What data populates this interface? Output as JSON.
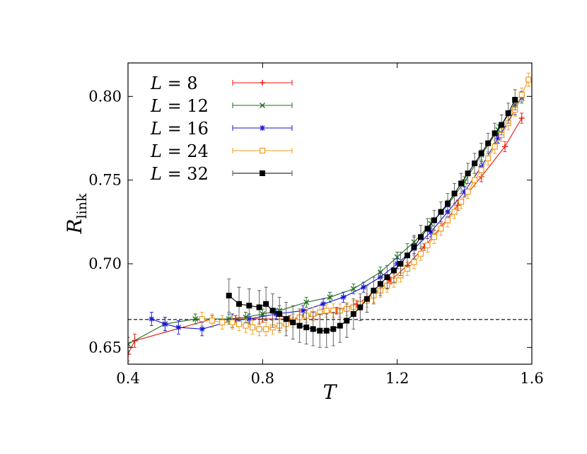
{
  "chart_data": {
    "type": "line",
    "xlabel": "T",
    "ylabel_main": "R",
    "ylabel_sub": "link",
    "xlim": [
      0.4,
      1.6
    ],
    "ylim": [
      0.64,
      0.82
    ],
    "xticks": [
      "0.4",
      "0.8",
      "1.2",
      "1.6"
    ],
    "yticks": [
      "0.65",
      "0.70",
      "0.75",
      "0.80"
    ],
    "reference_line": {
      "y": 0.6667,
      "style": "dashed",
      "color": "#000000"
    },
    "grid": false,
    "legend_position": "top-left",
    "series": [
      {
        "legend": "L = 8",
        "legend_var": "L",
        "legend_value": "8",
        "color": "#e8140c",
        "marker": "plus",
        "x": [
          0.4,
          0.42,
          0.65,
          0.72,
          0.8,
          0.88,
          0.95,
          1.02,
          1.08,
          1.13,
          1.18,
          1.23,
          1.28,
          1.33,
          1.38,
          1.45,
          1.52,
          1.57
        ],
        "y": [
          0.646,
          0.654,
          0.667,
          0.667,
          0.667,
          0.667,
          0.669,
          0.672,
          0.676,
          0.682,
          0.69,
          0.699,
          0.71,
          0.722,
          0.735,
          0.752,
          0.77,
          0.787
        ],
        "err": [
          0.004,
          0.004,
          0.002,
          0.002,
          0.002,
          0.002,
          0.002,
          0.002,
          0.002,
          0.002,
          0.002,
          0.002,
          0.002,
          0.002,
          0.003,
          0.003,
          0.003,
          0.003
        ]
      },
      {
        "legend": "L = 12",
        "legend_var": "L",
        "legend_value": "12",
        "color": "#1f6e1f",
        "marker": "x",
        "x": [
          0.4,
          0.51,
          0.6,
          0.7,
          0.75,
          0.8,
          0.85,
          0.93,
          1.0,
          1.07,
          1.15,
          1.2,
          1.25,
          1.3,
          1.35,
          1.4,
          1.45,
          1.5,
          1.55,
          1.57
        ],
        "y": [
          0.652,
          0.664,
          0.667,
          0.667,
          0.668,
          0.67,
          0.672,
          0.677,
          0.68,
          0.685,
          0.695,
          0.704,
          0.713,
          0.724,
          0.735,
          0.749,
          0.765,
          0.78,
          0.795,
          0.799
        ],
        "err": [
          0.004,
          0.004,
          0.003,
          0.003,
          0.003,
          0.003,
          0.003,
          0.003,
          0.003,
          0.003,
          0.003,
          0.003,
          0.003,
          0.003,
          0.003,
          0.003,
          0.003,
          0.003,
          0.003,
          0.003
        ]
      },
      {
        "legend": "L = 16",
        "legend_var": "L",
        "legend_value": "16",
        "color": "#1515d8",
        "marker": "star",
        "x": [
          0.47,
          0.51,
          0.55,
          0.62,
          0.71,
          0.76,
          0.84,
          0.92,
          0.98,
          1.04,
          1.1,
          1.15,
          1.2,
          1.25,
          1.3,
          1.35,
          1.4,
          1.45,
          1.5,
          1.55,
          1.57
        ],
        "y": [
          0.667,
          0.664,
          0.662,
          0.661,
          0.666,
          0.667,
          0.67,
          0.672,
          0.676,
          0.68,
          0.686,
          0.692,
          0.7,
          0.709,
          0.719,
          0.731,
          0.743,
          0.758,
          0.775,
          0.792,
          0.8
        ],
        "err": [
          0.004,
          0.004,
          0.004,
          0.004,
          0.004,
          0.003,
          0.003,
          0.003,
          0.003,
          0.003,
          0.003,
          0.003,
          0.003,
          0.003,
          0.003,
          0.003,
          0.003,
          0.003,
          0.003,
          0.003,
          0.003
        ]
      },
      {
        "legend": "L = 24",
        "legend_var": "L",
        "legend_value": "24",
        "color": "#f39b1b",
        "marker": "square-open",
        "x": [
          0.62,
          0.65,
          0.68,
          0.71,
          0.73,
          0.75,
          0.77,
          0.79,
          0.81,
          0.83,
          0.85,
          0.87,
          0.89,
          0.91,
          0.93,
          0.95,
          0.97,
          0.99,
          1.01,
          1.03,
          1.05,
          1.07,
          1.09,
          1.11,
          1.13,
          1.15,
          1.17,
          1.19,
          1.21,
          1.23,
          1.25,
          1.27,
          1.29,
          1.31,
          1.33,
          1.35,
          1.37,
          1.39,
          1.41,
          1.43,
          1.45,
          1.47,
          1.49,
          1.51,
          1.53,
          1.55,
          1.57,
          1.59
        ],
        "y": [
          0.667,
          0.666,
          0.665,
          0.665,
          0.664,
          0.663,
          0.662,
          0.661,
          0.661,
          0.662,
          0.663,
          0.664,
          0.666,
          0.668,
          0.669,
          0.67,
          0.671,
          0.672,
          0.672,
          0.672,
          0.673,
          0.674,
          0.676,
          0.678,
          0.681,
          0.684,
          0.687,
          0.69,
          0.693,
          0.697,
          0.701,
          0.706,
          0.711,
          0.716,
          0.721,
          0.726,
          0.731,
          0.737,
          0.743,
          0.75,
          0.756,
          0.763,
          0.77,
          0.777,
          0.784,
          0.792,
          0.801,
          0.81
        ],
        "err": [
          0.004,
          0.004,
          0.004,
          0.004,
          0.004,
          0.004,
          0.004,
          0.004,
          0.004,
          0.004,
          0.004,
          0.004,
          0.004,
          0.004,
          0.004,
          0.004,
          0.004,
          0.004,
          0.004,
          0.004,
          0.004,
          0.004,
          0.004,
          0.004,
          0.004,
          0.004,
          0.004,
          0.004,
          0.004,
          0.004,
          0.004,
          0.004,
          0.004,
          0.004,
          0.004,
          0.004,
          0.004,
          0.004,
          0.004,
          0.004,
          0.004,
          0.004,
          0.004,
          0.004,
          0.004,
          0.004,
          0.004,
          0.004
        ]
      },
      {
        "legend": "L = 32",
        "legend_var": "L",
        "legend_value": "32",
        "color": "#000000",
        "marker": "square-filled",
        "x": [
          0.7,
          0.73,
          0.76,
          0.79,
          0.81,
          0.83,
          0.85,
          0.87,
          0.89,
          0.91,
          0.93,
          0.95,
          0.97,
          0.99,
          1.01,
          1.03,
          1.05,
          1.07,
          1.09,
          1.11,
          1.13,
          1.15,
          1.17,
          1.19,
          1.21,
          1.23,
          1.25,
          1.27,
          1.29,
          1.31,
          1.33,
          1.35,
          1.37,
          1.39,
          1.41,
          1.43,
          1.45,
          1.47,
          1.49,
          1.51,
          1.53,
          1.55
        ],
        "y": [
          0.681,
          0.676,
          0.675,
          0.674,
          0.676,
          0.672,
          0.67,
          0.667,
          0.665,
          0.663,
          0.662,
          0.661,
          0.66,
          0.66,
          0.661,
          0.663,
          0.666,
          0.67,
          0.674,
          0.679,
          0.684,
          0.688,
          0.692,
          0.696,
          0.7,
          0.705,
          0.71,
          0.716,
          0.721,
          0.726,
          0.731,
          0.736,
          0.742,
          0.748,
          0.754,
          0.76,
          0.766,
          0.772,
          0.778,
          0.783,
          0.79,
          0.798
        ],
        "err": [
          0.01,
          0.01,
          0.01,
          0.01,
          0.01,
          0.01,
          0.01,
          0.01,
          0.01,
          0.01,
          0.01,
          0.01,
          0.01,
          0.01,
          0.01,
          0.01,
          0.01,
          0.009,
          0.008,
          0.008,
          0.008,
          0.007,
          0.007,
          0.007,
          0.007,
          0.007,
          0.007,
          0.007,
          0.006,
          0.006,
          0.006,
          0.006,
          0.006,
          0.006,
          0.006,
          0.006,
          0.006,
          0.006,
          0.006,
          0.006,
          0.006,
          0.006
        ]
      }
    ]
  }
}
